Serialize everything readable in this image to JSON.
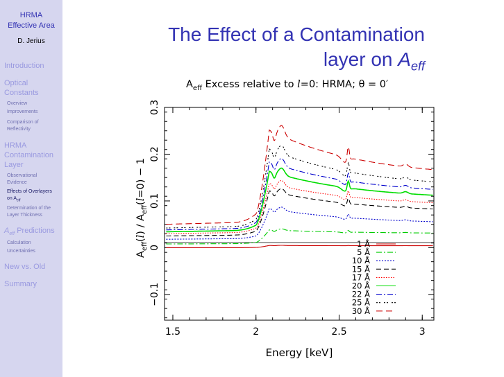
{
  "sidebar": {
    "title_line1": "HRMA",
    "title_line2": "Effective Area",
    "author": "D. Jerius",
    "sections": [
      {
        "label": "Introduction"
      },
      {
        "label_line1": "Optical",
        "label_line2": "Constants",
        "subs": [
          "Overview",
          "Improvements",
          "Comparison of",
          "Reflectivity"
        ]
      },
      {
        "label_line1": "HRMA",
        "label_line2": "Contamination",
        "label_line3": "Layer",
        "subs": [
          "Observational",
          "Evidence",
          "Effects of Overlayers",
          "on A",
          "eff",
          "Determination of the",
          "Layer Thickness"
        ]
      },
      {
        "label_a": "A",
        "label_sub": "eff",
        "label_b": " Predictions",
        "subs": [
          "Calculation",
          "Uncertainties"
        ]
      },
      {
        "label": "New vs. Old"
      },
      {
        "label": "Summary"
      }
    ]
  },
  "slide": {
    "title_line1": "The Effect of a Contamination",
    "title_line2a": "layer on ",
    "title_line2_A": "A",
    "title_line2_sub": "eff"
  },
  "chart_data": {
    "type": "line",
    "title_a": "A",
    "title_sub": "eff",
    "title_b": " Excess relative to ",
    "title_ell": "l",
    "title_c": "=0: HRMA; θ = 0′",
    "xlabel": "Energy [keV]",
    "ylabel": "A_eff(l) / A_eff(l=0) − 1",
    "xlim": [
      1.45,
      3.07
    ],
    "ylim": [
      -0.155,
      0.3
    ],
    "xticks": [
      "1.5",
      "2",
      "2.5",
      "3"
    ],
    "yticks": [
      "−0.1",
      "0",
      "0.1",
      "0.2",
      "0.3"
    ],
    "series": [
      {
        "name": "1 Å",
        "color": "#cc0000",
        "dash": "",
        "y0": 0.0,
        "yt": 0.005,
        "y3": 0.004
      },
      {
        "name": "5 Å",
        "color": "#00cc00",
        "dash": "8,3,2,3",
        "y0": 0.008,
        "yt": 0.04,
        "y3": 0.03
      },
      {
        "name": "10 Å",
        "color": "#0000cc",
        "dash": "2,2",
        "y0": 0.018,
        "yt": 0.088,
        "y3": 0.05
      },
      {
        "name": "15 Å",
        "color": "#000000",
        "dash": "7,4",
        "y0": 0.025,
        "yt": 0.128,
        "y3": 0.075
      },
      {
        "name": "17 Å",
        "color": "#ff0000",
        "dash": "1.5,2",
        "y0": 0.03,
        "yt": 0.145,
        "y3": 0.088
      },
      {
        "name": "20 Å",
        "color": "#00dd00",
        "dash": "",
        "y0": 0.034,
        "yt": 0.172,
        "y3": 0.102
      },
      {
        "name": "22 Å",
        "color": "#0000cc",
        "dash": "8,3,2,3",
        "y0": 0.038,
        "yt": 0.193,
        "y3": 0.113
      },
      {
        "name": "25 Å",
        "color": "#000000",
        "dash": "2,2,2,5",
        "y0": 0.042,
        "yt": 0.222,
        "y3": 0.127
      },
      {
        "name": "30 Å",
        "color": "#cc0000",
        "dash": "9,5",
        "y0": 0.05,
        "yt": 0.265,
        "y3": 0.15
      }
    ]
  }
}
